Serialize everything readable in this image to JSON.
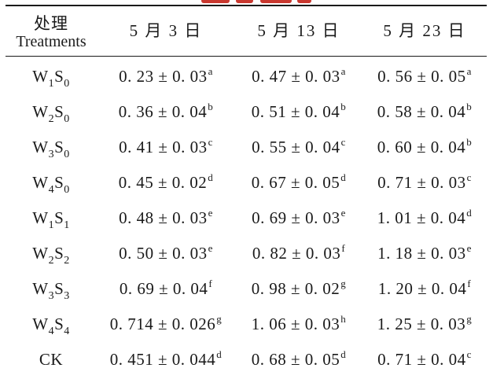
{
  "header": {
    "treatment_cn": "处理",
    "treatment_en": "Treatments",
    "dates": [
      "5 月 3 日",
      "5 月 13 日",
      "5 月 23 日"
    ]
  },
  "rows": [
    {
      "treatment": {
        "base1": "W",
        "sub1": "1",
        "base2": "S",
        "sub2": "0"
      },
      "values": [
        {
          "value": "0. 23 ± 0. 03",
          "sig": "a"
        },
        {
          "value": "0. 47 ± 0. 03",
          "sig": "a"
        },
        {
          "value": "0. 56 ± 0. 05",
          "sig": "a"
        }
      ]
    },
    {
      "treatment": {
        "base1": "W",
        "sub1": "2",
        "base2": "S",
        "sub2": "0"
      },
      "values": [
        {
          "value": "0. 36 ± 0. 04",
          "sig": "b"
        },
        {
          "value": "0. 51 ± 0. 04",
          "sig": "b"
        },
        {
          "value": "0. 58 ± 0. 04",
          "sig": "b"
        }
      ]
    },
    {
      "treatment": {
        "base1": "W",
        "sub1": "3",
        "base2": "S",
        "sub2": "0"
      },
      "values": [
        {
          "value": "0. 41 ± 0. 03",
          "sig": "c"
        },
        {
          "value": "0. 55 ± 0. 04",
          "sig": "c"
        },
        {
          "value": "0. 60 ± 0. 04",
          "sig": "b"
        }
      ]
    },
    {
      "treatment": {
        "base1": "W",
        "sub1": "4",
        "base2": "S",
        "sub2": "0"
      },
      "values": [
        {
          "value": "0. 45 ± 0. 02",
          "sig": "d"
        },
        {
          "value": "0. 67 ± 0. 05",
          "sig": "d"
        },
        {
          "value": "0. 71 ± 0. 03",
          "sig": "c"
        }
      ]
    },
    {
      "treatment": {
        "base1": "W",
        "sub1": "1",
        "base2": "S",
        "sub2": "1"
      },
      "values": [
        {
          "value": "0. 48 ± 0. 03",
          "sig": "e"
        },
        {
          "value": "0. 69 ± 0. 03",
          "sig": "e"
        },
        {
          "value": "1. 01 ± 0. 04",
          "sig": "d"
        }
      ]
    },
    {
      "treatment": {
        "base1": "W",
        "sub1": "2",
        "base2": "S",
        "sub2": "2"
      },
      "values": [
        {
          "value": "0. 50 ± 0. 03",
          "sig": "e"
        },
        {
          "value": "0. 82 ± 0. 03",
          "sig": "f"
        },
        {
          "value": "1. 18 ± 0. 03",
          "sig": "e"
        }
      ]
    },
    {
      "treatment": {
        "base1": "W",
        "sub1": "3",
        "base2": "S",
        "sub2": "3"
      },
      "values": [
        {
          "value": "0. 69 ± 0. 04",
          "sig": "f"
        },
        {
          "value": "0. 98 ± 0. 02",
          "sig": "g"
        },
        {
          "value": "1. 20 ± 0. 04",
          "sig": "f"
        }
      ]
    },
    {
      "treatment": {
        "base1": "W",
        "sub1": "4",
        "base2": "S",
        "sub2": "4"
      },
      "values": [
        {
          "value": "0. 714 ± 0. 026",
          "sig": "g"
        },
        {
          "value": "1. 06 ± 0. 03",
          "sig": "h"
        },
        {
          "value": "1. 25 ± 0. 03",
          "sig": "g"
        }
      ]
    },
    {
      "treatment": {
        "base1": "CK",
        "sub1": "",
        "base2": "",
        "sub2": ""
      },
      "values": [
        {
          "value": "0. 451 ± 0. 044",
          "sig": "d"
        },
        {
          "value": "0. 68 ± 0. 05",
          "sig": "d"
        },
        {
          "value": "0. 71 ± 0. 04",
          "sig": "c"
        }
      ]
    }
  ],
  "colors": {
    "text": "#1a1a1a",
    "background": "#ffffff",
    "clipped_heading": "#c9382f"
  }
}
